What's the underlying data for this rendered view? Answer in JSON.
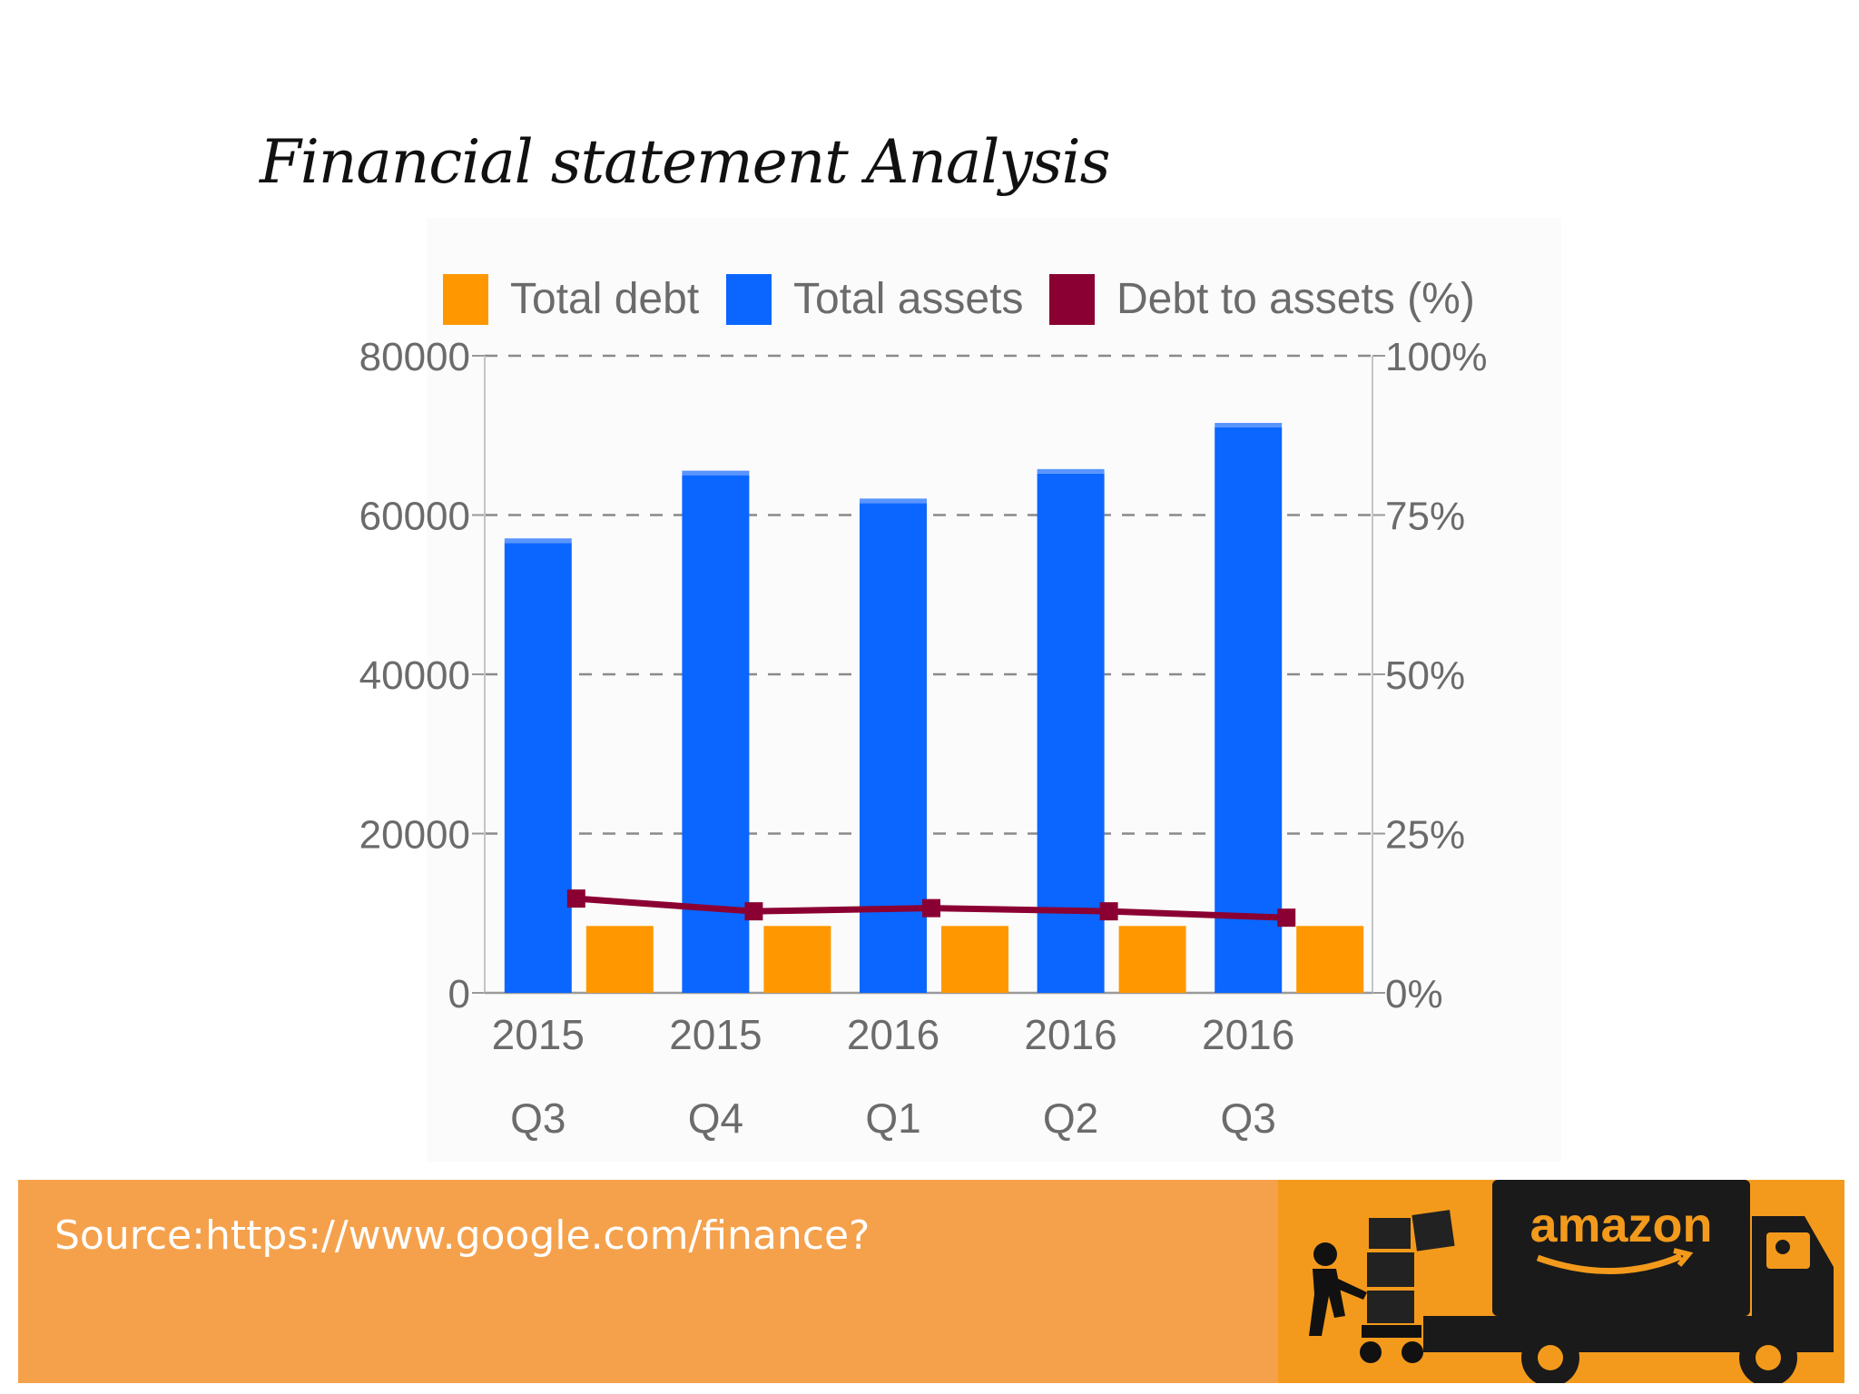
{
  "slide": {
    "title": "Financial statement Analysis",
    "source": "Source:https://www.google.com/finance?",
    "logo_text": "amazon"
  },
  "colors": {
    "total_debt": "#ff9800",
    "total_assets": "#0a66ff",
    "debt_to_assets": "#8b0032",
    "footer": "#f5a14c",
    "logo_bg": "#f39a1c"
  },
  "chart_data": {
    "type": "bar",
    "categories": [
      "2015 Q3",
      "2015 Q4",
      "2016 Q1",
      "2016 Q2",
      "2016 Q3"
    ],
    "category_lines": [
      [
        "2015",
        "Q3"
      ],
      [
        "2015",
        "Q4"
      ],
      [
        "2016",
        "Q1"
      ],
      [
        "2016",
        "Q2"
      ],
      [
        "2016",
        "Q3"
      ]
    ],
    "series": [
      {
        "name": "Total assets",
        "type": "bar",
        "axis": "left",
        "values": [
          56500,
          65000,
          61500,
          65200,
          71000
        ]
      },
      {
        "name": "Total debt",
        "type": "bar",
        "axis": "left",
        "values": [
          8400,
          8400,
          8400,
          8400,
          8400
        ]
      },
      {
        "name": "Debt to assets (%)",
        "type": "line",
        "axis": "right",
        "values": [
          14.8,
          12.8,
          13.3,
          12.8,
          11.8
        ]
      }
    ],
    "legend": [
      "Total debt",
      "Total assets",
      "Debt to assets (%)"
    ],
    "legend_position": "top",
    "ylim": [
      0,
      80000
    ],
    "yticks": [
      "0",
      "20000",
      "40000",
      "60000",
      "80000"
    ],
    "y2lim": [
      0,
      100
    ],
    "y2ticks": [
      "0%",
      "25%",
      "50%",
      "75%",
      "100%"
    ],
    "grid": true
  }
}
